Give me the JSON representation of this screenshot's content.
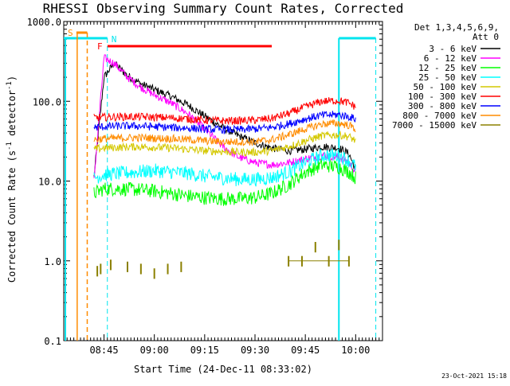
{
  "chart_data": {
    "type": "line",
    "title": "RHESSI Observing Summary Count Rates, Corrected",
    "xlabel": "Start Time (24-Dec-11 08:33:02)",
    "ylabel_main": "Corrected Count Rate (s",
    "ylabel_sup1": "-1",
    "ylabel_mid": " detector",
    "ylabel_sup2": "-1",
    "ylabel_end": ")",
    "yscale": "log",
    "ylim": [
      0.1,
      1000
    ],
    "xlim": [
      "08:33",
      "10:08"
    ],
    "x_ticks": [
      "08:45",
      "09:00",
      "09:15",
      "09:30",
      "09:45",
      "10:00"
    ],
    "y_ticks": [
      "0.1",
      "1.0",
      "10.0",
      "100.0",
      "1000.0"
    ],
    "legend_header": [
      "Det 1,3,4,5,6,9,",
      "Att 0"
    ],
    "timestamp": "23-Oct-2021 15:18",
    "colors": {
      "cyan": "#00e5ee",
      "orange": "#ff8c00",
      "red": "#ff0000",
      "magenta": "#ff00ff"
    },
    "markers": {
      "saa_label": "S",
      "night_label": "N",
      "flare_label": "F",
      "saa_start": "08:37",
      "saa_end": "08:40",
      "night_end": "08:46",
      "night_start": "09:55",
      "next_night_end": "10:06",
      "flare_start": "08:47",
      "flare_end": "09:35"
    },
    "series": [
      {
        "name": "3 - 6 keV",
        "color": "#000000",
        "points": [
          [
            "08:42",
            11
          ],
          [
            "08:45",
            200
          ],
          [
            "08:48",
            300
          ],
          [
            "08:52",
            210
          ],
          [
            "08:56",
            165
          ],
          [
            "09:00",
            140
          ],
          [
            "09:05",
            115
          ],
          [
            "09:10",
            90
          ],
          [
            "09:15",
            65
          ],
          [
            "09:20",
            48
          ],
          [
            "09:25",
            37
          ],
          [
            "09:30",
            30
          ],
          [
            "09:35",
            26
          ],
          [
            "09:40",
            24
          ],
          [
            "09:45",
            25
          ],
          [
            "09:50",
            27
          ],
          [
            "09:55",
            26
          ],
          [
            "09:58",
            22
          ],
          [
            "10:00",
            14
          ]
        ]
      },
      {
        "name": "6 - 12 keV",
        "color": "#ff00ff",
        "points": [
          [
            "08:42",
            10
          ],
          [
            "08:45",
            350
          ],
          [
            "08:48",
            300
          ],
          [
            "08:52",
            200
          ],
          [
            "08:56",
            150
          ],
          [
            "09:00",
            120
          ],
          [
            "09:05",
            95
          ],
          [
            "09:10",
            70
          ],
          [
            "09:15",
            45
          ],
          [
            "09:20",
            28
          ],
          [
            "09:25",
            20
          ],
          [
            "09:30",
            17
          ],
          [
            "09:35",
            16
          ],
          [
            "09:40",
            17
          ],
          [
            "09:45",
            19
          ],
          [
            "09:50",
            21
          ],
          [
            "09:55",
            20
          ],
          [
            "09:58",
            17
          ],
          [
            "10:00",
            13
          ]
        ]
      },
      {
        "name": "12 - 25 keV",
        "color": "#00ff00",
        "points": [
          [
            "08:42",
            7
          ],
          [
            "08:45",
            8
          ],
          [
            "08:50",
            8
          ],
          [
            "08:55",
            7.8
          ],
          [
            "09:00",
            7.5
          ],
          [
            "09:05",
            7
          ],
          [
            "09:10",
            6.5
          ],
          [
            "09:15",
            6.2
          ],
          [
            "09:20",
            6
          ],
          [
            "09:25",
            6
          ],
          [
            "09:30",
            6.2
          ],
          [
            "09:35",
            7
          ],
          [
            "09:40",
            9
          ],
          [
            "09:45",
            13
          ],
          [
            "09:50",
            16
          ],
          [
            "09:55",
            15
          ],
          [
            "09:58",
            13
          ],
          [
            "10:00",
            11
          ]
        ]
      },
      {
        "name": "25 - 50 keV",
        "color": "#00ffff",
        "points": [
          [
            "08:42",
            11
          ],
          [
            "08:45",
            12
          ],
          [
            "08:50",
            12.5
          ],
          [
            "08:55",
            13
          ],
          [
            "09:00",
            13.5
          ],
          [
            "09:05",
            13
          ],
          [
            "09:10",
            12.5
          ],
          [
            "09:15",
            11.5
          ],
          [
            "09:20",
            11
          ],
          [
            "09:25",
            10.5
          ],
          [
            "09:30",
            10.5
          ],
          [
            "09:35",
            11
          ],
          [
            "09:40",
            13
          ],
          [
            "09:45",
            17
          ],
          [
            "09:50",
            21
          ],
          [
            "09:55",
            21
          ],
          [
            "09:58",
            18
          ],
          [
            "10:00",
            15
          ]
        ]
      },
      {
        "name": "50 - 100 keV",
        "color": "#d4c800",
        "points": [
          [
            "08:42",
            25
          ],
          [
            "08:45",
            26
          ],
          [
            "08:50",
            26.5
          ],
          [
            "08:55",
            27
          ],
          [
            "09:00",
            26.5
          ],
          [
            "09:05",
            26
          ],
          [
            "09:10",
            25
          ],
          [
            "09:15",
            24
          ],
          [
            "09:20",
            23.5
          ],
          [
            "09:25",
            23
          ],
          [
            "09:30",
            23
          ],
          [
            "09:35",
            24
          ],
          [
            "09:40",
            27
          ],
          [
            "09:45",
            32
          ],
          [
            "09:50",
            37
          ],
          [
            "09:55",
            38
          ],
          [
            "09:58",
            36
          ],
          [
            "10:00",
            32
          ]
        ]
      },
      {
        "name": "100 - 300 keV",
        "color": "#ff0000",
        "points": [
          [
            "08:42",
            62
          ],
          [
            "08:45",
            63
          ],
          [
            "08:50",
            64
          ],
          [
            "08:55",
            64
          ],
          [
            "09:00",
            63
          ],
          [
            "09:05",
            62
          ],
          [
            "09:10",
            60
          ],
          [
            "09:15",
            58
          ],
          [
            "09:20",
            57
          ],
          [
            "09:25",
            57
          ],
          [
            "09:30",
            58
          ],
          [
            "09:35",
            61
          ],
          [
            "09:40",
            70
          ],
          [
            "09:45",
            85
          ],
          [
            "09:50",
            100
          ],
          [
            "09:55",
            102
          ],
          [
            "09:58",
            95
          ],
          [
            "10:00",
            85
          ]
        ]
      },
      {
        "name": "300 - 800 keV",
        "color": "#0000ff",
        "points": [
          [
            "08:42",
            47
          ],
          [
            "08:45",
            48
          ],
          [
            "08:50",
            49
          ],
          [
            "08:55",
            49
          ],
          [
            "09:00",
            48
          ],
          [
            "09:05",
            47
          ],
          [
            "09:10",
            46
          ],
          [
            "09:15",
            45
          ],
          [
            "09:20",
            44
          ],
          [
            "09:25",
            44
          ],
          [
            "09:30",
            45
          ],
          [
            "09:35",
            47
          ],
          [
            "09:40",
            52
          ],
          [
            "09:45",
            60
          ],
          [
            "09:50",
            67
          ],
          [
            "09:55",
            68
          ],
          [
            "09:58",
            64
          ],
          [
            "10:00",
            60
          ]
        ]
      },
      {
        "name": "800 - 7000 keV",
        "color": "#ff8c00",
        "points": [
          [
            "08:42",
            33
          ],
          [
            "08:45",
            34
          ],
          [
            "08:50",
            34.5
          ],
          [
            "08:55",
            35
          ],
          [
            "09:00",
            34.5
          ],
          [
            "09:05",
            34
          ],
          [
            "09:10",
            33
          ],
          [
            "09:15",
            32
          ],
          [
            "09:20",
            31
          ],
          [
            "09:25",
            31
          ],
          [
            "09:30",
            31
          ],
          [
            "09:35",
            33
          ],
          [
            "09:40",
            38
          ],
          [
            "09:45",
            45
          ],
          [
            "09:50",
            52
          ],
          [
            "09:55",
            53
          ],
          [
            "09:58",
            50
          ],
          [
            "10:00",
            45
          ]
        ]
      },
      {
        "name": "7000 - 15000 keV",
        "color": "#8b8000",
        "points": [
          [
            "08:43",
            0.75
          ],
          [
            "08:44",
            0.8
          ],
          [
            "08:47",
            0.9
          ],
          [
            "08:52",
            0.85
          ],
          [
            "08:56",
            0.8
          ],
          [
            "09:00",
            0.7
          ],
          [
            "09:04",
            0.8
          ],
          [
            "09:08",
            0.85
          ],
          [
            "09:40",
            1.0
          ],
          [
            "09:44",
            1.0
          ],
          [
            "09:48",
            1.5
          ],
          [
            "09:52",
            1.0
          ],
          [
            "09:55",
            1.6
          ],
          [
            "09:58",
            1.0
          ]
        ]
      }
    ]
  }
}
